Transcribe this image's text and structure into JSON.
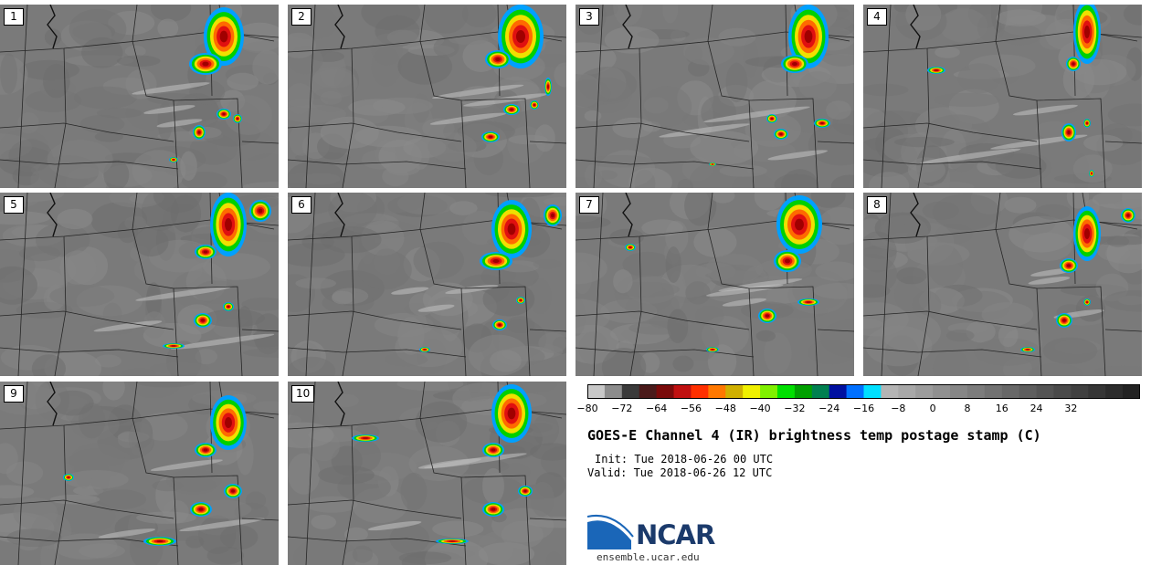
{
  "panels": [
    {
      "label": "1"
    },
    {
      "label": "2"
    },
    {
      "label": "3"
    },
    {
      "label": "4"
    },
    {
      "label": "5"
    },
    {
      "label": "6"
    },
    {
      "label": "7"
    },
    {
      "label": "8"
    },
    {
      "label": "9"
    },
    {
      "label": "10"
    }
  ],
  "colorbar": {
    "colors": [
      "#c8c8c8",
      "#8c8c8c",
      "#3a3a3a",
      "#4a1a1a",
      "#7a0a0a",
      "#c01010",
      "#ff3000",
      "#ff7800",
      "#d0b000",
      "#f0f000",
      "#80f000",
      "#00e000",
      "#00a000",
      "#008050",
      "#0010a0",
      "#0070ff",
      "#00e0ff",
      "#b4b4b4",
      "#a8a8a8",
      "#9c9c9c",
      "#909090",
      "#868686",
      "#7c7c7c",
      "#727272",
      "#686868",
      "#5e5e5e",
      "#545454",
      "#4a4a4a",
      "#404040",
      "#363636",
      "#2c2c2c",
      "#222222"
    ],
    "tick_labels": [
      "−80",
      "−72",
      "−64",
      "−56",
      "−48",
      "−40",
      "−32",
      "−24",
      "−16",
      "−8",
      "0",
      "8",
      "16",
      "24",
      "32"
    ]
  },
  "title": "GOES-E Channel 4 (IR) brightness temp postage stamp (C)",
  "init": "Init: Tue 2018-06-26 00 UTC",
  "valid": "Valid: Tue 2018-06-26 12 UTC",
  "logo": {
    "text": "NCAR",
    "website": "ensemble.ucar.edu"
  }
}
